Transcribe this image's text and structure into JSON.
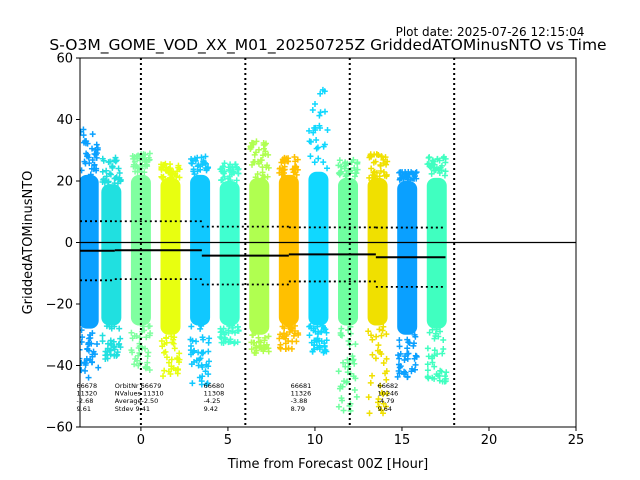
{
  "header": {
    "plot_date": "Plot date: 2025-07-26 12:15:04",
    "title": "S-O3M_GOME_VOD_XX_M01_20250725Z GriddedATOMinusNTO vs Time"
  },
  "chart_data": {
    "type": "scatter",
    "title": "S-O3M_GOME_VOD_XX_M01_20250725Z GriddedATOMinusNTO vs Time",
    "xlabel": "Time from Forecast 00Z [Hour]",
    "ylabel": "GriddedATOMinusNTO",
    "xlim": [
      -3.5,
      25
    ],
    "ylim": [
      -60,
      60
    ],
    "x_ticks": [
      0,
      5,
      10,
      15,
      20,
      25
    ],
    "y_ticks": [
      -60,
      -40,
      -20,
      0,
      20,
      40,
      60
    ],
    "grid": false,
    "vertical_dotted_lines_x": [
      0,
      6,
      12,
      18
    ],
    "zero_line_y": 0,
    "marker": "+",
    "colormap": "jet",
    "granules": [
      {
        "center": -3.0,
        "color": "#0aa0ff",
        "core_lo": -28,
        "core_hi": 22,
        "tail_lo": -44,
        "tail_hi": 37
      },
      {
        "center": -1.7,
        "color": "#20e0e0",
        "core_lo": -27,
        "core_hi": 19,
        "tail_lo": -39,
        "tail_hi": 28
      },
      {
        "center": 0.0,
        "color": "#80ffa0",
        "core_lo": -27,
        "core_hi": 22,
        "tail_lo": -42,
        "tail_hi": 29
      },
      {
        "center": 1.7,
        "color": "#e8ff10",
        "core_lo": -30,
        "core_hi": 21,
        "tail_lo": -45,
        "tail_hi": 26
      },
      {
        "center": 3.4,
        "color": "#10c8ff",
        "core_lo": -27,
        "core_hi": 22,
        "tail_lo": -47,
        "tail_hi": 28
      },
      {
        "center": 5.1,
        "color": "#40ffd0",
        "core_lo": -27,
        "core_hi": 20,
        "tail_lo": -33,
        "tail_hi": 26
      },
      {
        "center": 6.8,
        "color": "#b0ff50",
        "core_lo": -30,
        "core_hi": 21,
        "tail_lo": -36,
        "tail_hi": 33
      },
      {
        "center": 8.5,
        "color": "#ffc000",
        "core_lo": -27,
        "core_hi": 22,
        "tail_lo": -35,
        "tail_hi": 28
      },
      {
        "center": 10.2,
        "color": "#10d8ff",
        "core_lo": -27,
        "core_hi": 23,
        "tail_lo": -36,
        "tail_hi": 50
      },
      {
        "center": 11.9,
        "color": "#70ffa0",
        "core_lo": -27,
        "core_hi": 21,
        "tail_lo": -55,
        "tail_hi": 27
      },
      {
        "center": 13.6,
        "color": "#f0e000",
        "core_lo": -27,
        "core_hi": 21,
        "tail_lo": -56,
        "tail_hi": 29
      },
      {
        "center": 15.3,
        "color": "#0aa0ff",
        "core_lo": -30,
        "core_hi": 20,
        "tail_lo": -44,
        "tail_hi": 23
      },
      {
        "center": 17.0,
        "color": "#40ffc0",
        "core_lo": -28,
        "core_hi": 21,
        "tail_lo": -46,
        "tail_hi": 28
      }
    ],
    "mean_line": [
      {
        "x0": -3.5,
        "x1": -1.5,
        "y": -2.68
      },
      {
        "x0": -1.5,
        "x1": 3.5,
        "y": -2.5
      },
      {
        "x0": 3.5,
        "x1": 8.5,
        "y": -4.25
      },
      {
        "x0": 8.5,
        "x1": 13.5,
        "y": -3.88
      },
      {
        "x0": 13.5,
        "x1": 17.5,
        "y": -4.79
      }
    ],
    "stdev_lines": [
      {
        "x0": -3.5,
        "x1": -1.5,
        "upper": 6.93,
        "lower": -12.29
      },
      {
        "x0": -1.5,
        "x1": 3.5,
        "upper": 6.91,
        "lower": -11.91
      },
      {
        "x0": 3.5,
        "x1": 8.5,
        "upper": 5.17,
        "lower": -13.67
      },
      {
        "x0": 8.5,
        "x1": 13.5,
        "upper": 4.91,
        "lower": -12.67
      },
      {
        "x0": 13.5,
        "x1": 17.5,
        "upper": 4.85,
        "lower": -14.43
      }
    ],
    "orbit_stats": [
      {
        "x": -3.7,
        "lines": [
          "66678",
          "11320",
          "-2.68",
          "9.61"
        ]
      },
      {
        "x": -1.5,
        "lines": [
          "OrbitNr  66679",
          "NValues 11310",
          "Average-2.50",
          "Stdev    9.41"
        ]
      },
      {
        "x": 3.6,
        "lines": [
          "66680",
          "11308",
          "-4.25",
          "9.42"
        ]
      },
      {
        "x": 8.6,
        "lines": [
          "66681",
          "11326",
          "-3.88",
          "8.79"
        ]
      },
      {
        "x": 13.6,
        "lines": [
          "66682",
          "10246",
          "-4.79",
          "9.64"
        ]
      }
    ]
  }
}
